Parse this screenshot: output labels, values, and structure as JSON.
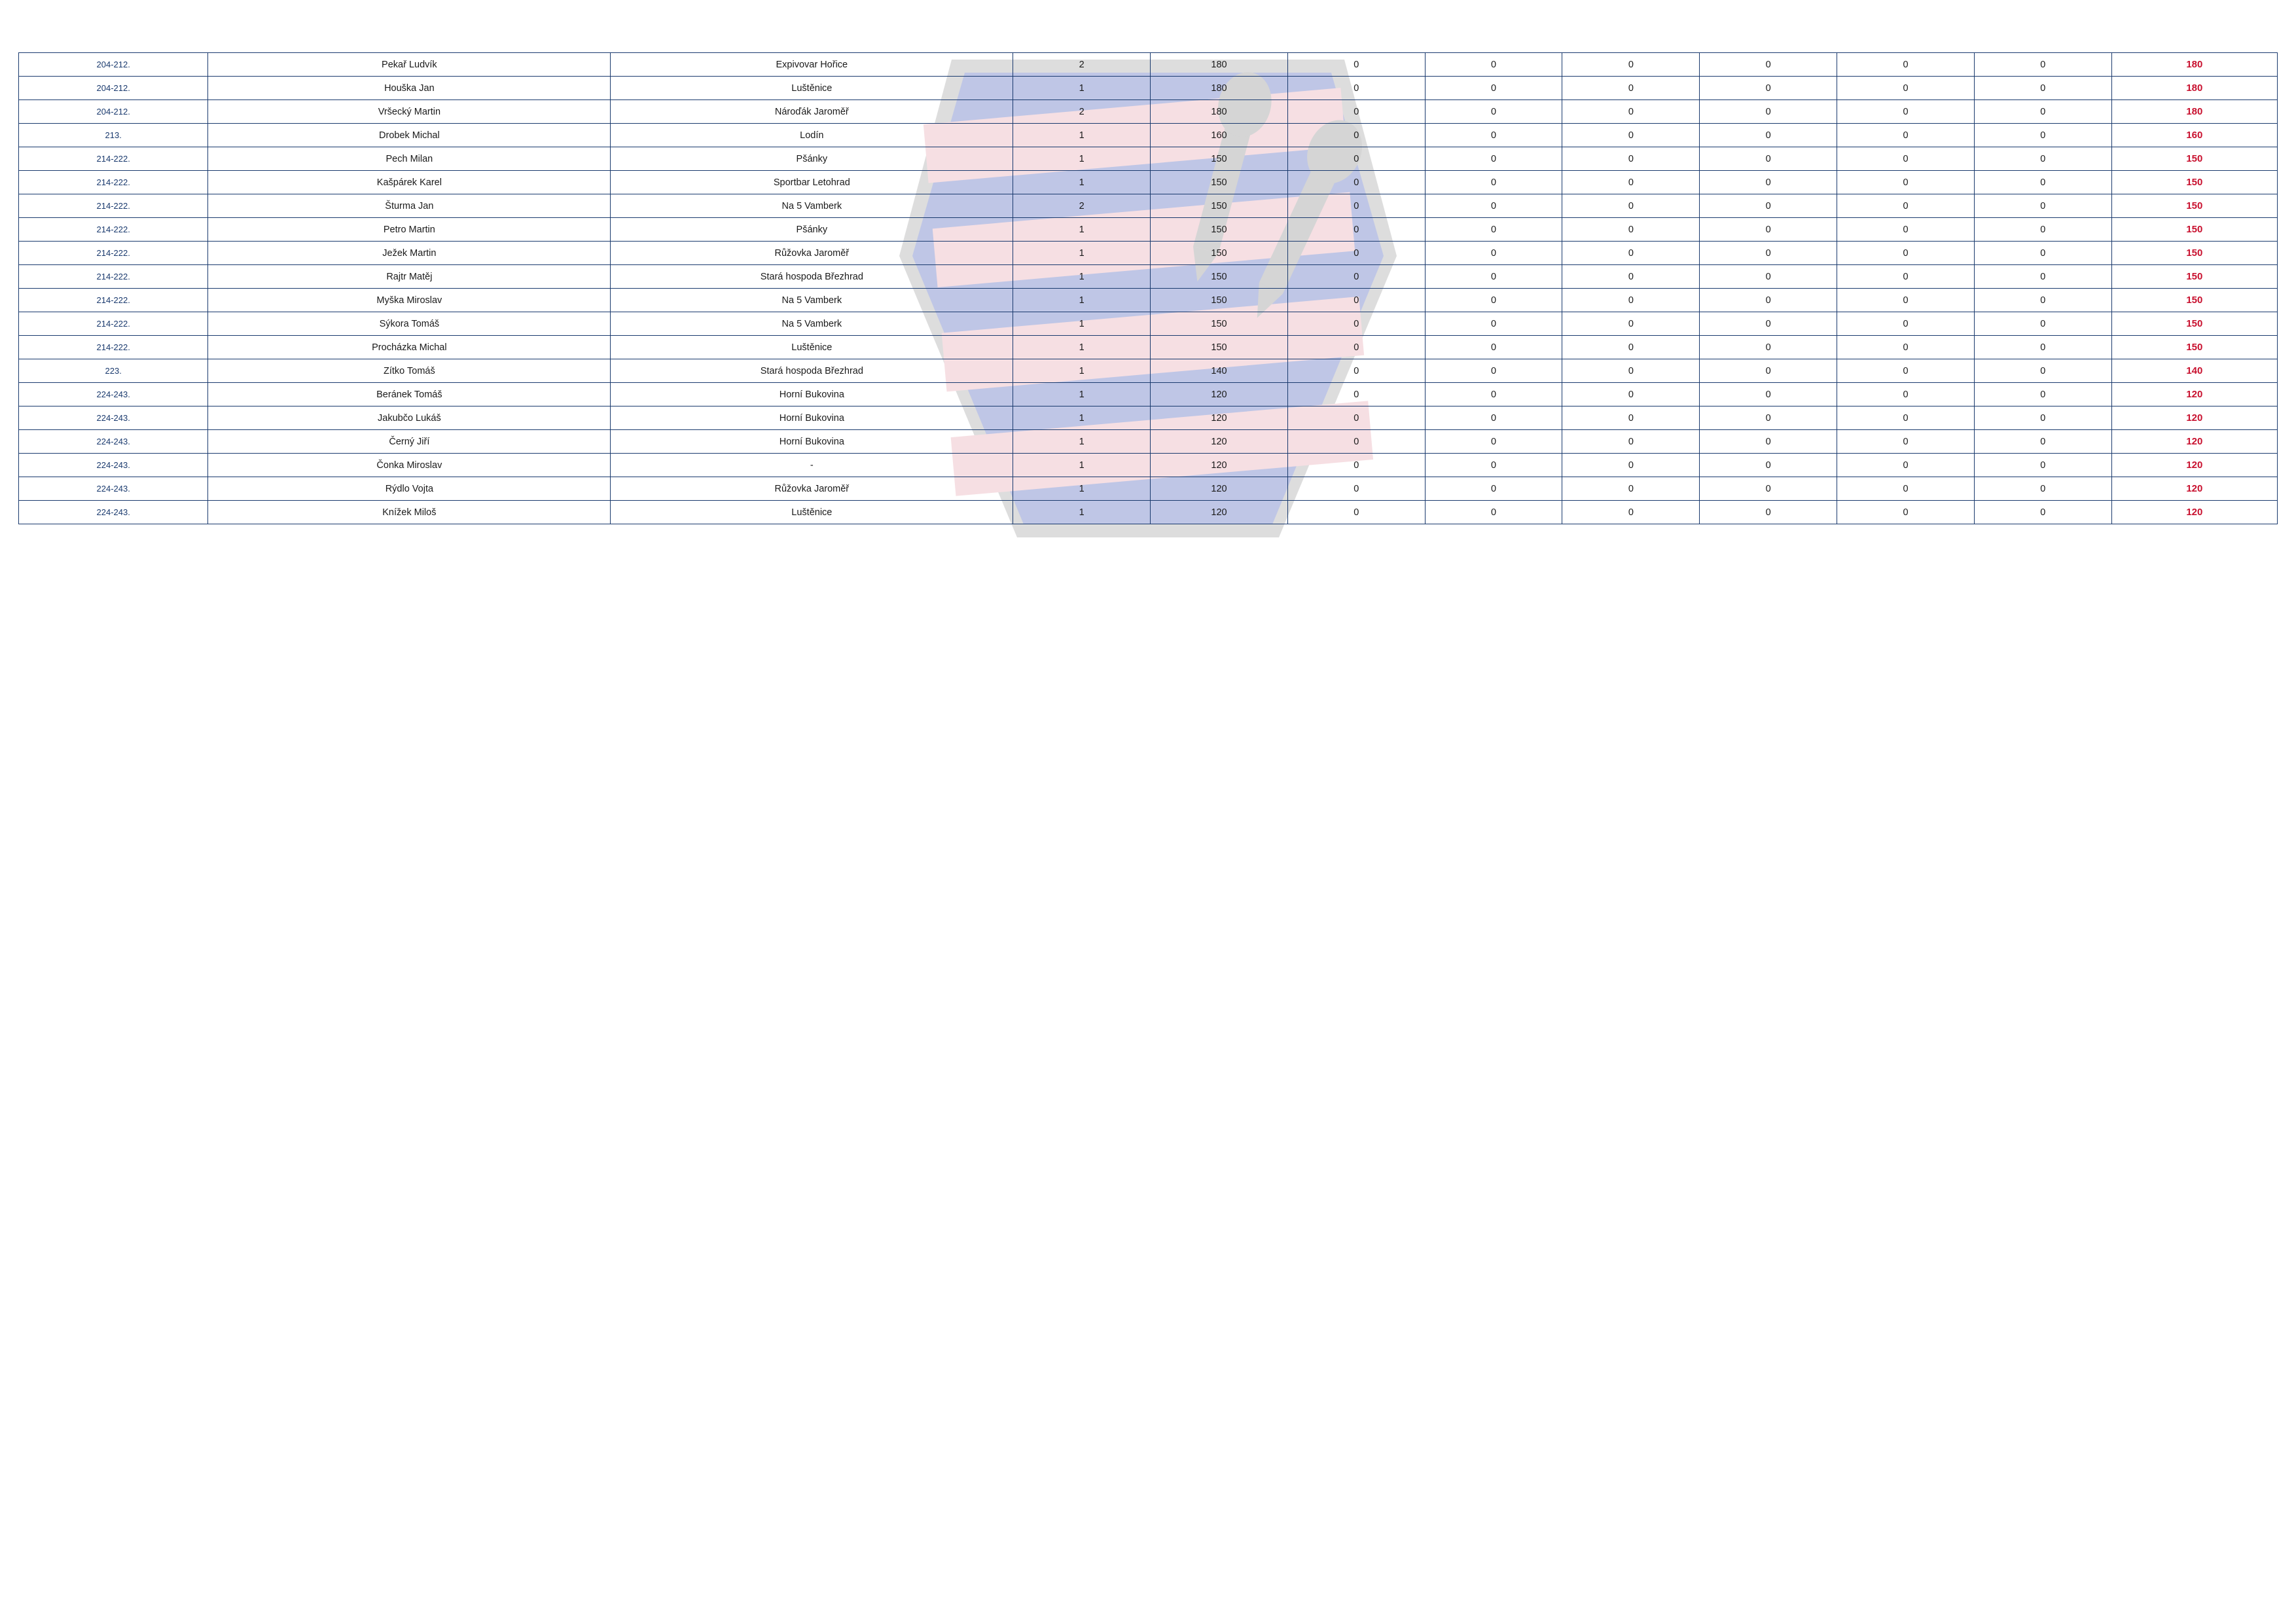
{
  "table": {
    "border_color": "#1a3a6e",
    "rank_color": "#1a3a6e",
    "text_color": "#1a1a1a",
    "total_color": "#c8102e",
    "background_color": "#ffffff",
    "font_family": "Verdana",
    "body_fontsize": 14.5,
    "rank_fontsize": 13,
    "total_fontsize": 15,
    "total_fontweight": "bold",
    "column_widths_pct": [
      8,
      17,
      17,
      5.8,
      5.8,
      5.8,
      5.8,
      5.8,
      5.8,
      5.8,
      5.8,
      7
    ],
    "rows": [
      {
        "rank": "204-212.",
        "name": "Pekař Ludvík",
        "team": "Expivovar Hořice",
        "c1": "2",
        "c2": "180",
        "c3": "0",
        "c4": "0",
        "c5": "0",
        "c6": "0",
        "c7": "0",
        "c8": "0",
        "total": "180"
      },
      {
        "rank": "204-212.",
        "name": "Houška Jan",
        "team": "Luštěnice",
        "c1": "1",
        "c2": "180",
        "c3": "0",
        "c4": "0",
        "c5": "0",
        "c6": "0",
        "c7": "0",
        "c8": "0",
        "total": "180"
      },
      {
        "rank": "204-212.",
        "name": "Vršecký Martin",
        "team": "Nároďák Jaroměř",
        "c1": "2",
        "c2": "180",
        "c3": "0",
        "c4": "0",
        "c5": "0",
        "c6": "0",
        "c7": "0",
        "c8": "0",
        "total": "180"
      },
      {
        "rank": "213.",
        "name": "Drobek Michal",
        "team": "Lodín",
        "c1": "1",
        "c2": "160",
        "c3": "0",
        "c4": "0",
        "c5": "0",
        "c6": "0",
        "c7": "0",
        "c8": "0",
        "total": "160"
      },
      {
        "rank": "214-222.",
        "name": "Pech Milan",
        "team": "Pšánky",
        "c1": "1",
        "c2": "150",
        "c3": "0",
        "c4": "0",
        "c5": "0",
        "c6": "0",
        "c7": "0",
        "c8": "0",
        "total": "150"
      },
      {
        "rank": "214-222.",
        "name": "Kašpárek Karel",
        "team": "Sportbar Letohrad",
        "c1": "1",
        "c2": "150",
        "c3": "0",
        "c4": "0",
        "c5": "0",
        "c6": "0",
        "c7": "0",
        "c8": "0",
        "total": "150"
      },
      {
        "rank": "214-222.",
        "name": "Šturma Jan",
        "team": "Na 5 Vamberk",
        "c1": "2",
        "c2": "150",
        "c3": "0",
        "c4": "0",
        "c5": "0",
        "c6": "0",
        "c7": "0",
        "c8": "0",
        "total": "150"
      },
      {
        "rank": "214-222.",
        "name": "Petro Martin",
        "team": "Pšánky",
        "c1": "1",
        "c2": "150",
        "c3": "0",
        "c4": "0",
        "c5": "0",
        "c6": "0",
        "c7": "0",
        "c8": "0",
        "total": "150"
      },
      {
        "rank": "214-222.",
        "name": "Ježek Martin",
        "team": "Růžovka Jaroměř",
        "c1": "1",
        "c2": "150",
        "c3": "0",
        "c4": "0",
        "c5": "0",
        "c6": "0",
        "c7": "0",
        "c8": "0",
        "total": "150"
      },
      {
        "rank": "214-222.",
        "name": "Rajtr Matěj",
        "team": "Stará hospoda Březhrad",
        "c1": "1",
        "c2": "150",
        "c3": "0",
        "c4": "0",
        "c5": "0",
        "c6": "0",
        "c7": "0",
        "c8": "0",
        "total": "150"
      },
      {
        "rank": "214-222.",
        "name": "Myška Miroslav",
        "team": "Na 5 Vamberk",
        "c1": "1",
        "c2": "150",
        "c3": "0",
        "c4": "0",
        "c5": "0",
        "c6": "0",
        "c7": "0",
        "c8": "0",
        "total": "150"
      },
      {
        "rank": "214-222.",
        "name": "Sýkora Tomáš",
        "team": "Na 5 Vamberk",
        "c1": "1",
        "c2": "150",
        "c3": "0",
        "c4": "0",
        "c5": "0",
        "c6": "0",
        "c7": "0",
        "c8": "0",
        "total": "150"
      },
      {
        "rank": "214-222.",
        "name": "Procházka Michal",
        "team": "Luštěnice",
        "c1": "1",
        "c2": "150",
        "c3": "0",
        "c4": "0",
        "c5": "0",
        "c6": "0",
        "c7": "0",
        "c8": "0",
        "total": "150"
      },
      {
        "rank": "223.",
        "name": "Zítko Tomáš",
        "team": "Stará hospoda Březhrad",
        "c1": "1",
        "c2": "140",
        "c3": "0",
        "c4": "0",
        "c5": "0",
        "c6": "0",
        "c7": "0",
        "c8": "0",
        "total": "140"
      },
      {
        "rank": "224-243.",
        "name": "Beránek Tomáš",
        "team": "Horní Bukovina",
        "c1": "1",
        "c2": "120",
        "c3": "0",
        "c4": "0",
        "c5": "0",
        "c6": "0",
        "c7": "0",
        "c8": "0",
        "total": "120"
      },
      {
        "rank": "224-243.",
        "name": "Jakubčo Lukáš",
        "team": "Horní Bukovina",
        "c1": "1",
        "c2": "120",
        "c3": "0",
        "c4": "0",
        "c5": "0",
        "c6": "0",
        "c7": "0",
        "c8": "0",
        "total": "120"
      },
      {
        "rank": "224-243.",
        "name": "Černý Jiří",
        "team": "Horní Bukovina",
        "c1": "1",
        "c2": "120",
        "c3": "0",
        "c4": "0",
        "c5": "0",
        "c6": "0",
        "c7": "0",
        "c8": "0",
        "total": "120"
      },
      {
        "rank": "224-243.",
        "name": "Čonka Miroslav",
        "team": "-",
        "c1": "1",
        "c2": "120",
        "c3": "0",
        "c4": "0",
        "c5": "0",
        "c6": "0",
        "c7": "0",
        "c8": "0",
        "total": "120"
      },
      {
        "rank": "224-243.",
        "name": "Rýdlo Vojta",
        "team": "Růžovka Jaroměř",
        "c1": "1",
        "c2": "120",
        "c3": "0",
        "c4": "0",
        "c5": "0",
        "c6": "0",
        "c7": "0",
        "c8": "0",
        "total": "120"
      },
      {
        "rank": "224-243.",
        "name": "Knížek Miloš",
        "team": "Luštěnice",
        "c1": "1",
        "c2": "120",
        "c3": "0",
        "c4": "0",
        "c5": "0",
        "c6": "0",
        "c7": "0",
        "c8": "0",
        "total": "120"
      }
    ]
  }
}
